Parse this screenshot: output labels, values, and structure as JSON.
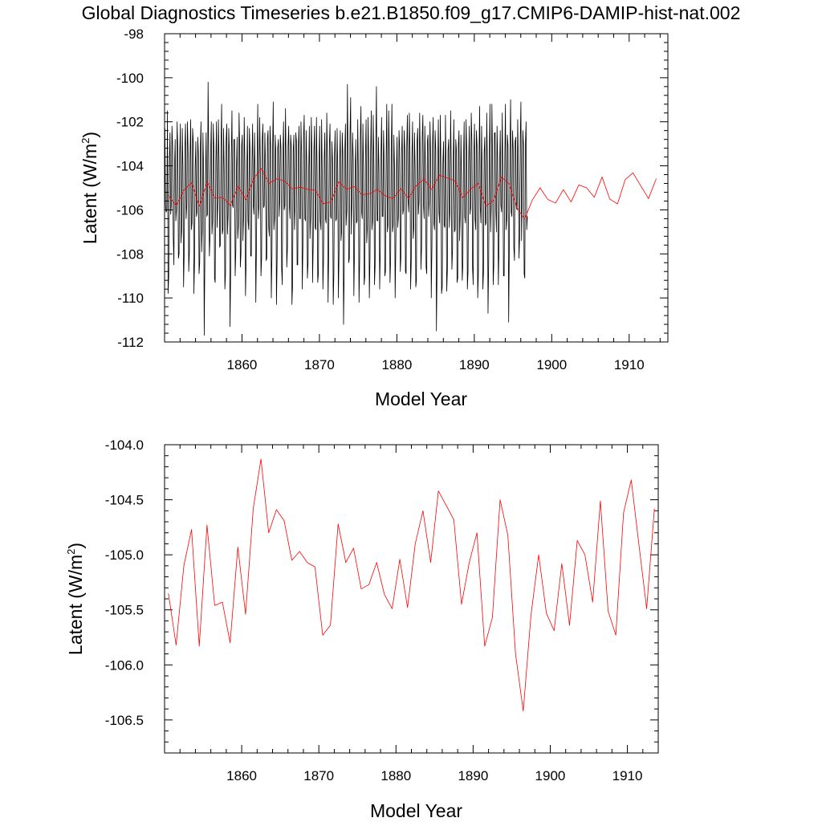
{
  "title": "Global Diagnostics Timeseries b.e21.B1850.f09_g17.CMIP6-DAMIP-hist-nat.002",
  "chart_data": [
    {
      "type": "line",
      "xlabel": "Model Year",
      "ylabel": {
        "base": "Latent (W/m",
        "sup": "2",
        "close": ")"
      },
      "xlim": [
        1850,
        1915
      ],
      "ylim": [
        -112,
        -98
      ],
      "xticks": [
        1860,
        1870,
        1880,
        1890,
        1900,
        1910
      ],
      "yticks": [
        -112,
        -110,
        -108,
        -106,
        -104,
        -102,
        -100,
        -98
      ],
      "ytick_labels": [
        "-112",
        "-110",
        "-108",
        "-106",
        "-104",
        "-102",
        "-100",
        "-98"
      ],
      "series": [
        {
          "color": "#000000",
          "x_start": 1850.04,
          "x_step": 0.0833,
          "values": [
            -102.3,
            -105.8,
            -106.1,
            -106.0,
            -101.5,
            -109.8,
            -109.0,
            -103.8,
            -102.5,
            -106.2,
            -105.8,
            -102.2,
            -103.1,
            -107.2,
            -108.5,
            -104.0,
            -102.8,
            -106.5,
            -106.0,
            -102.0,
            -103.2,
            -108.2,
            -108.0,
            -103.5,
            -102.1,
            -107.5,
            -106.9,
            -102.3,
            -104.1,
            -109.5,
            -107.9,
            -103.2,
            -102.1,
            -106.4,
            -105.8,
            -102.0,
            -103.3,
            -108.8,
            -107.9,
            -103.6,
            -101.9,
            -106.9,
            -106.6,
            -102.3,
            -102.9,
            -109.8,
            -108.3,
            -104.1,
            -102.9,
            -106.3,
            -106.1,
            -102.7,
            -103.5,
            -108.9,
            -108.4,
            -103.2,
            -102.0,
            -107.9,
            -106.9,
            -102.5,
            -104.1,
            -111.7,
            -108.2,
            -104.5,
            -102.5,
            -106.3,
            -106.2,
            -100.2,
            -103.6,
            -108.1,
            -107.2,
            -103.4,
            -102.0,
            -107.1,
            -106.5,
            -102.1,
            -103.2,
            -109.1,
            -109.3,
            -103.9,
            -102.0,
            -106.8,
            -105.7,
            -101.9,
            -103.8,
            -107.7,
            -107.6,
            -103.1,
            -101.2,
            -107.1,
            -106.9,
            -102.3,
            -104.2,
            -109.6,
            -108.9,
            -102.9,
            -102.1,
            -107.1,
            -106.2,
            -102.3,
            -103.4,
            -111.3,
            -108.8,
            -103.6,
            -101.5,
            -105.8,
            -105.9,
            -102.8,
            -102.8,
            -109.0,
            -107.9,
            -104.2,
            -102.7,
            -107.3,
            -106.7,
            -101.6,
            -103.2,
            -108.6,
            -108.0,
            -103.1,
            -102.6,
            -107.4,
            -106.3,
            -101.8,
            -103.8,
            -109.9,
            -108.3,
            -104.4,
            -102.2,
            -106.5,
            -106.9,
            -102.3,
            -103.3,
            -108.1,
            -108.1,
            -103.9,
            -102.1,
            -105.8,
            -106.2,
            -102.5,
            -104.5,
            -110.2,
            -107.6,
            -103.7,
            -101.2,
            -106.4,
            -105.8,
            -101.8,
            -103.8,
            -109.0,
            -108.2,
            -102.8,
            -102.1,
            -105.9,
            -105.8,
            -102.5,
            -104.0,
            -108.3,
            -108.2,
            -102.8,
            -102.4,
            -106.8,
            -107.2,
            -102.2,
            -103.1,
            -110.0,
            -108.1,
            -103.3,
            -101.1,
            -106.9,
            -106.4,
            -102.6,
            -103.4,
            -110.3,
            -108.3,
            -103.2,
            -102.8,
            -106.3,
            -105.6,
            -102.6,
            -103.2,
            -108.6,
            -109.4,
            -103.5,
            -102.0,
            -106.0,
            -105.8,
            -101.4,
            -104.0,
            -108.6,
            -107.7,
            -103.1,
            -102.2,
            -105.8,
            -106.4,
            -102.6,
            -103.1,
            -110.3,
            -109.4,
            -103.3,
            -102.6,
            -106.9,
            -105.8,
            -102.5,
            -102.9,
            -108.5,
            -108.5,
            -103.1,
            -102.2,
            -106.4,
            -106.4,
            -102.0,
            -103.5,
            -109.6,
            -107.7,
            -102.7,
            -101.7,
            -106.4,
            -106.5,
            -102.4,
            -104.0,
            -109.1,
            -108.4,
            -104.3,
            -102.2,
            -107.3,
            -106.3,
            -101.8,
            -103.5,
            -109.3,
            -107.5,
            -103.4,
            -102.2,
            -106.8,
            -106.9,
            -101.8,
            -104.2,
            -109.3,
            -108.9,
            -103.9,
            -102.2,
            -106.5,
            -106.9,
            -101.9,
            -104.4,
            -109.6,
            -108.2,
            -103.8,
            -102.5,
            -106.4,
            -106.6,
            -101.6,
            -103.7,
            -110.2,
            -108.0,
            -103.1,
            -102.1,
            -106.3,
            -106.4,
            -102.9,
            -103.9,
            -110.3,
            -108.9,
            -103.5,
            -102.4,
            -106.5,
            -106.4,
            -102.3,
            -104.2,
            -110.0,
            -108.0,
            -103.7,
            -102.4,
            -107.4,
            -107.0,
            -102.5,
            -103.5,
            -111.2,
            -108.8,
            -103.3,
            -102.1,
            -106.7,
            -106.0,
            -100.3,
            -103.7,
            -108.4,
            -108.2,
            -102.6,
            -100.9,
            -107.1,
            -105.6,
            -102.5,
            -103.7,
            -109.9,
            -107.8,
            -104.2,
            -102.8,
            -106.6,
            -106.5,
            -101.9,
            -104.3,
            -110.2,
            -108.2,
            -102.8,
            -101.3,
            -106.1,
            -106.4,
            -102.1,
            -104.2,
            -109.4,
            -109.0,
            -103.5,
            -101.9,
            -107.5,
            -106.8,
            -101.8,
            -103.7,
            -110.0,
            -108.2,
            -103.4,
            -101.5,
            -106.9,
            -106.5,
            -101.7,
            -103.8,
            -109.4,
            -108.5,
            -103.2,
            -100.4,
            -106.5,
            -106.5,
            -102.7,
            -104.2,
            -109.6,
            -107.8,
            -103.6,
            -101.8,
            -106.3,
            -106.3,
            -102.4,
            -103.8,
            -109.0,
            -108.8,
            -103.8,
            -101.2,
            -107.0,
            -106.7,
            -101.5,
            -103.5,
            -109.3,
            -108.3,
            -103.2,
            -101.2,
            -107.0,
            -106.7,
            -102.6,
            -104.1,
            -110.0,
            -107.8,
            -104.3,
            -102.7,
            -106.8,
            -106.3,
            -102.4,
            -103.2,
            -108.8,
            -108.1,
            -103.5,
            -102.2,
            -106.2,
            -106.0,
            -102.4,
            -103.3,
            -108.8,
            -108.9,
            -103.1,
            -101.7,
            -105.6,
            -106.1,
            -101.6,
            -103.3,
            -109.6,
            -108.3,
            -103.6,
            -102.0,
            -107.3,
            -106.8,
            -102.5,
            -104.1,
            -109.5,
            -109.2,
            -102.9,
            -102.3,
            -106.2,
            -105.6,
            -101.6,
            -103.7,
            -108.7,
            -107.7,
            -102.7,
            -101.7,
            -105.8,
            -106.4,
            -102.2,
            -104.2,
            -108.6,
            -108.9,
            -102.9,
            -102.6,
            -106.3,
            -105.6,
            -102.0,
            -103.6,
            -110.0,
            -107.7,
            -103.0,
            -101.8,
            -106.6,
            -106.9,
            -102.4,
            -103.3,
            -111.5,
            -108.6,
            -104.1,
            -101.9,
            -106.1,
            -106.6,
            -101.7,
            -104.1,
            -109.8,
            -109.5,
            -103.9,
            -102.9,
            -106.7,
            -106.8,
            -101.7,
            -104.4,
            -109.7,
            -108.7,
            -103.3,
            -102.8,
            -106.8,
            -106.0,
            -101.5,
            -104.0,
            -108.7,
            -107.8,
            -103.9,
            -101.9,
            -107.0,
            -106.9,
            -102.8,
            -103.3,
            -109.3,
            -109.1,
            -103.1,
            -102.4,
            -107.4,
            -106.2,
            -102.6,
            -104.6,
            -109.2,
            -108.5,
            -103.8,
            -102.0,
            -106.3,
            -106.6,
            -101.9,
            -103.4,
            -109.6,
            -108.8,
            -103.9,
            -102.2,
            -106.2,
            -105.9,
            -101.6,
            -102.9,
            -108.6,
            -109.4,
            -103.5,
            -102.1,
            -106.4,
            -106.9,
            -102.4,
            -103.1,
            -110.0,
            -108.9,
            -103.8,
            -101.3,
            -105.9,
            -106.6,
            -102.2,
            -104.3,
            -109.6,
            -108.8,
            -103.4,
            -102.7,
            -106.7,
            -106.6,
            -101.6,
            -103.9,
            -110.7,
            -108.4,
            -103.5,
            -101.2,
            -107.0,
            -105.8,
            -101.2,
            -103.6,
            -109.4,
            -108.5,
            -102.5,
            -102.5,
            -106.0,
            -107.0,
            -102.2,
            -103.8,
            -109.4,
            -107.7,
            -103.9,
            -102.4,
            -105.8,
            -106.1,
            -101.6,
            -104.2,
            -109.0,
            -109.0,
            -103.7,
            -101.2,
            -106.9,
            -106.4,
            -102.6,
            -103.1,
            -111.1,
            -107.7,
            -103.3,
            -101.0,
            -106.1,
            -106.3,
            -102.4,
            -103.2,
            -107.7,
            -108.3,
            -102.9,
            -102.7,
            -105.9,
            -106.0,
            -101.9,
            -104.0,
            -108.2,
            -107.2,
            -102.8,
            -101.1,
            -107.4,
            -105.4,
            -102.4,
            -103.1,
            -108.9,
            -109.1,
            -103.0,
            -102.0,
            -106.9,
            -106.3
          ]
        },
        {
          "color": "#ff0000",
          "x_start": 1850.5,
          "x_step": 1,
          "values": [
            -105.35,
            -105.82,
            -105.1,
            -104.77,
            -105.83,
            -104.73,
            -105.46,
            -105.43,
            -105.8,
            -104.93,
            -105.54,
            -104.58,
            -104.13,
            -104.8,
            -104.59,
            -104.69,
            -105.05,
            -104.97,
            -105.07,
            -105.11,
            -105.73,
            -105.64,
            -104.72,
            -105.07,
            -104.94,
            -105.31,
            -105.27,
            -105.07,
            -105.36,
            -105.49,
            -105.04,
            -105.48,
            -104.9,
            -104.6,
            -105.07,
            -104.42,
            -104.55,
            -104.68,
            -105.45,
            -105.07,
            -104.8,
            -105.83,
            -105.57,
            -104.5,
            -104.82,
            -105.9,
            -106.42,
            -105.55,
            -105.0,
            -105.53,
            -105.69,
            -105.08,
            -105.64,
            -104.87,
            -105.0,
            -105.43,
            -104.51,
            -105.51,
            -105.73,
            -104.62,
            -104.32,
            -104.91,
            -105.49,
            -104.58
          ]
        }
      ]
    },
    {
      "type": "line",
      "xlabel": "Model Year",
      "ylabel": {
        "base": "Latent (W/m",
        "sup": "2",
        "close": ")"
      },
      "xlim": [
        1850,
        1914
      ],
      "ylim": [
        -106.8,
        -104
      ],
      "xticks": [
        1860,
        1870,
        1880,
        1890,
        1900,
        1910
      ],
      "yticks": [
        -106.5,
        -106,
        -105.5,
        -105,
        -104.5,
        -104
      ],
      "ytick_labels": [
        "-106.5",
        "-106.0",
        "-105.5",
        "-105.0",
        "-104.5",
        "-104.0"
      ],
      "series": [
        {
          "color": "#ff0000",
          "x_start": 1850.5,
          "x_step": 1,
          "values": [
            -105.35,
            -105.82,
            -105.1,
            -104.77,
            -105.83,
            -104.73,
            -105.46,
            -105.43,
            -105.8,
            -104.93,
            -105.54,
            -104.58,
            -104.13,
            -104.8,
            -104.59,
            -104.69,
            -105.05,
            -104.97,
            -105.07,
            -105.11,
            -105.73,
            -105.64,
            -104.72,
            -105.07,
            -104.94,
            -105.31,
            -105.27,
            -105.07,
            -105.36,
            -105.49,
            -105.04,
            -105.48,
            -104.9,
            -104.6,
            -105.07,
            -104.42,
            -104.55,
            -104.68,
            -105.45,
            -105.07,
            -104.8,
            -105.83,
            -105.57,
            -104.5,
            -104.82,
            -105.9,
            -106.42,
            -105.55,
            -105.0,
            -105.53,
            -105.69,
            -105.08,
            -105.64,
            -104.87,
            -105.0,
            -105.43,
            -104.51,
            -105.51,
            -105.73,
            -104.62,
            -104.32,
            -104.91,
            -105.49,
            -104.58
          ]
        }
      ]
    }
  ]
}
